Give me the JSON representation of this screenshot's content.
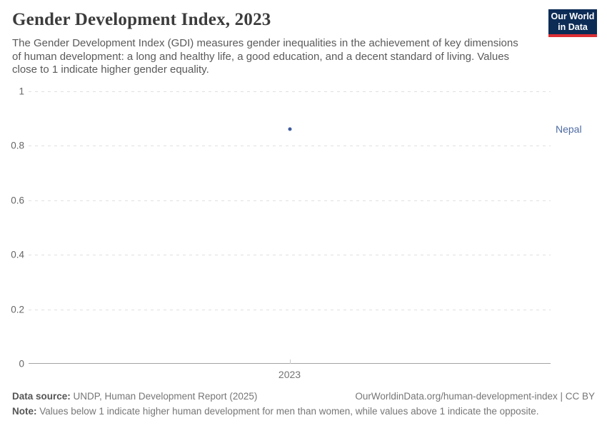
{
  "header": {
    "title": "Gender Development Index, 2023",
    "subtitle": "The Gender Development Index (GDI) measures gender inequalities in the achievement of key dimensions of human development: a long and healthy life, a good education, and a decent standard of living. Values close to 1 indicate higher gender equality.",
    "logo": {
      "line1": "Our World",
      "line2": "in Data",
      "bg_color": "#0c2c56",
      "stripe_color": "#dc2e34"
    }
  },
  "chart_data": {
    "type": "scatter",
    "title": "Gender Development Index, 2023",
    "x": [
      2023
    ],
    "series": [
      {
        "name": "Nepal",
        "values": [
          0.86
        ]
      }
    ],
    "entity_label": "Nepal",
    "xlabel": "",
    "ylabel": "",
    "ylim": [
      0,
      1
    ],
    "yticks": [
      "1",
      "0.8",
      "0.6",
      "0.4",
      "0.2",
      "0"
    ],
    "xticks": [
      "2023"
    ],
    "grid": "horizontal dashed, solid baseline at 0",
    "legend_position": "right of point, entity label",
    "point_color": "#3d5b9e",
    "label_color": "#4e6ba3",
    "point_x_fraction": 0.5
  },
  "footer": {
    "data_source_label": "Data source:",
    "data_source": "UNDP, Human Development Report (2025)",
    "url_credit": "OurWorldinData.org/human-development-index | CC BY",
    "note_label": "Note:",
    "note": "Values below 1 indicate higher human development for men than women, while values above 1 indicate the opposite."
  }
}
